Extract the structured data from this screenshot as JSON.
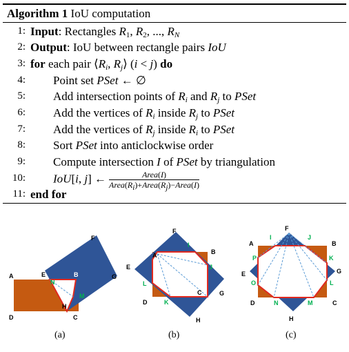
{
  "algorithm": {
    "label": "Algorithm 1",
    "name": "IoU computation",
    "lines": [
      {
        "no": "1:",
        "pre_bold": "Input",
        "text": ": Rectangles "
      },
      {
        "no": "2:",
        "pre_bold": "Output",
        "text": ": IoU between rectangle pairs "
      },
      {
        "no": "3:",
        "kw1": "for",
        "text": " each pair ",
        "kw2": "do"
      },
      {
        "no": "4:",
        "text": "Point set "
      },
      {
        "no": "5:",
        "text": "Add intersection points of "
      },
      {
        "no": "6:",
        "text": "Add the vertices of "
      },
      {
        "no": "7:",
        "text": "Add the vertices of "
      },
      {
        "no": "8:",
        "text": "Sort "
      },
      {
        "no": "9:",
        "text": "Compute intersection "
      },
      {
        "no": "10:",
        "text": ""
      },
      {
        "no": "11:",
        "kw1": "end for"
      }
    ]
  },
  "captions": [
    "(a)",
    "(b)",
    "(c)"
  ],
  "colors": {
    "orange": "#C55A11",
    "blue": "#2F5597",
    "red": "#E0291F",
    "green": "#00B050",
    "dash": "#5B9BD5"
  }
}
